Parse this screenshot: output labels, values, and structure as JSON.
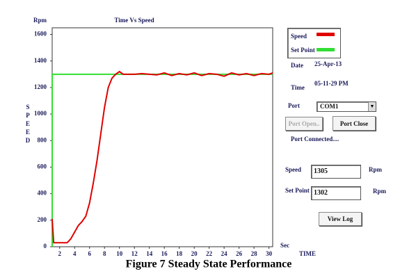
{
  "chart_data": {
    "type": "line",
    "title": "Time Vs Speed",
    "y_unit": "Rpm",
    "ylabel": "SPEED",
    "x_unit": "Sec",
    "xlabel": "TIME",
    "xlim": [
      1,
      30.5
    ],
    "ylim": [
      0,
      1650
    ],
    "xticks": [
      2,
      4,
      6,
      8,
      10,
      12,
      14,
      16,
      18,
      20,
      22,
      24,
      26,
      28,
      30
    ],
    "yticks": [
      0,
      200,
      400,
      600,
      800,
      1000,
      1200,
      1400,
      1600
    ],
    "series": [
      {
        "name": "Speed",
        "color": "#e00000",
        "x": [
          1,
          1.2,
          2,
          3,
          3.5,
          4,
          4.5,
          5,
          5.5,
          6,
          6.5,
          7,
          7.5,
          8,
          8.5,
          9,
          9.5,
          10,
          10.5,
          11,
          12,
          13,
          14,
          15,
          16,
          17,
          18,
          19,
          20,
          21,
          22,
          23,
          24,
          25,
          26,
          27,
          28,
          29,
          30,
          30.5
        ],
        "values": [
          210,
          30,
          30,
          30,
          60,
          110,
          160,
          190,
          230,
          330,
          480,
          650,
          850,
          1050,
          1200,
          1270,
          1300,
          1320,
          1300,
          1300,
          1300,
          1305,
          1300,
          1295,
          1310,
          1290,
          1305,
          1295,
          1310,
          1290,
          1305,
          1300,
          1285,
          1310,
          1295,
          1305,
          1290,
          1305,
          1300,
          1310
        ]
      },
      {
        "name": "Set Point",
        "color": "#33dd33",
        "x": [
          1,
          1,
          30.5
        ],
        "values": [
          0,
          1300,
          1300
        ]
      }
    ]
  },
  "panel": {
    "date_label": "Date",
    "date": "25-Apr-13",
    "time_label": "Time",
    "time": "05-11-29 PM",
    "port_label": "Port",
    "port": "COM1",
    "port_open": "Port Open..",
    "port_close": "Port Close",
    "status": "Port Connected....",
    "speed_label": "Speed",
    "speed": "1305",
    "speed_unit": "Rpm",
    "setpoint_label": "Set Point",
    "setpoint": "1302",
    "setpoint_unit": "Rpm",
    "view_log": "View Log"
  },
  "caption": "Figure 7 Steady State Performance"
}
